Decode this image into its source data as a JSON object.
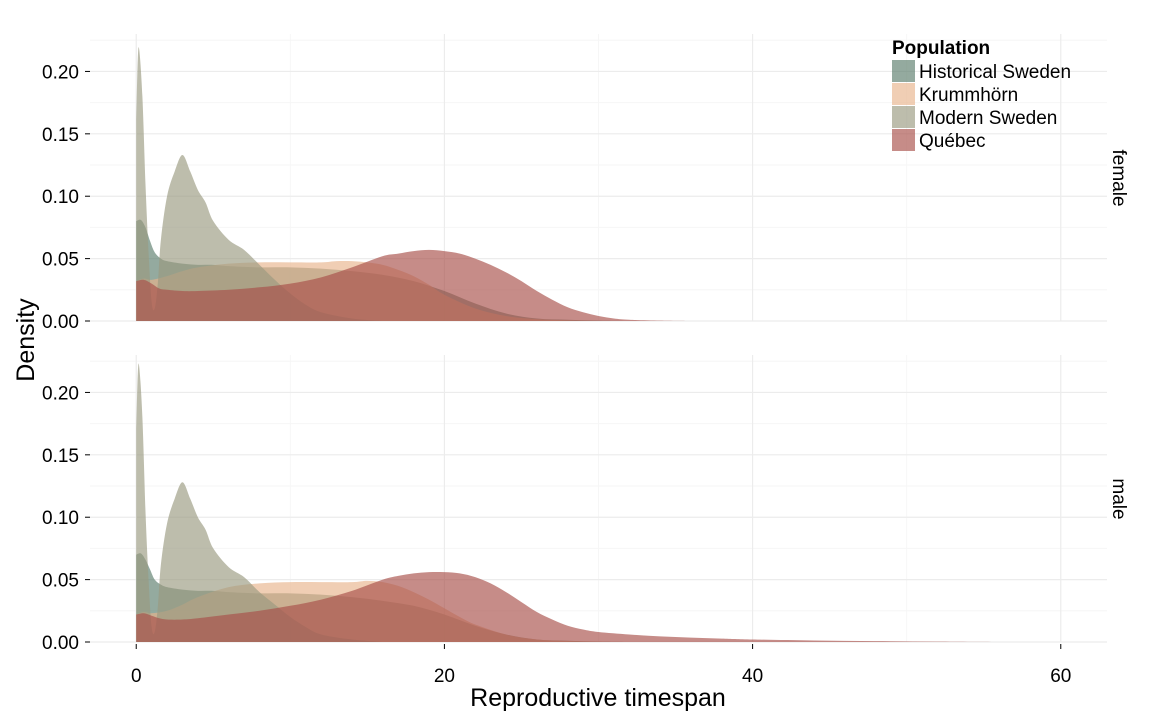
{
  "chart_data": {
    "type": "area",
    "title": "",
    "xlabel": "Reproductive timespan",
    "ylabel": "Density",
    "xlim": [
      -3,
      63
    ],
    "ylim": [
      0,
      0.23
    ],
    "x_ticks": [
      0,
      20,
      40,
      60
    ],
    "x_tick_labels": [
      "0",
      "20",
      "40",
      "60"
    ],
    "y_ticks": [
      0,
      0.05,
      0.1,
      0.15,
      0.2
    ],
    "y_tick_labels": [
      "0.00",
      "0.05",
      "0.10",
      "0.15",
      "0.20"
    ],
    "grid": true,
    "legend": {
      "title": "Population",
      "placement": "top-right",
      "entries": [
        "Historical Sweden",
        "Krummhörn",
        "Modern Sweden",
        "Québec"
      ]
    },
    "series_colors": {
      "Historical Sweden": "#5a7c6c",
      "Krummhörn": "#e8b48c",
      "Modern Sweden": "#9a9a80",
      "Québec": "#a84e48"
    },
    "series_opacity": 0.65,
    "facets": [
      {
        "label": "female",
        "series": [
          {
            "name": "Historical Sweden",
            "x": [
              0,
              0.3,
              0.6,
              0.9,
              1.2,
              1.6,
              2,
              3,
              4,
              5,
              6,
              8,
              10,
              12,
              14,
              16,
              18,
              20,
              22,
              24,
              26,
              28,
              30,
              32
            ],
            "values": [
              0.08,
              0.081,
              0.075,
              0.064,
              0.055,
              0.05,
              0.048,
              0.046,
              0.045,
              0.045,
              0.044,
              0.043,
              0.043,
              0.042,
              0.04,
              0.037,
              0.032,
              0.024,
              0.014,
              0.006,
              0.002,
              0.001,
              0.0003,
              0
            ]
          },
          {
            "name": "Krummhörn",
            "x": [
              0,
              0.5,
              1,
              2,
              3,
              4,
              6,
              8,
              10,
              12,
              13,
              14,
              15,
              16,
              17,
              18,
              19,
              20,
              22,
              24,
              26,
              28,
              30
            ],
            "values": [
              0.032,
              0.034,
              0.033,
              0.036,
              0.04,
              0.043,
              0.046,
              0.047,
              0.047,
              0.047,
              0.048,
              0.048,
              0.047,
              0.045,
              0.041,
              0.036,
              0.029,
              0.021,
              0.01,
              0.004,
              0.0015,
              0.0005,
              0
            ]
          },
          {
            "name": "Modern Sweden",
            "x": [
              0,
              0.1,
              0.2,
              0.4,
              0.6,
              0.8,
              1,
              1.2,
              1.4,
              1.6,
              2,
              2.5,
              3,
              3.5,
              4,
              4.5,
              5,
              6,
              7,
              8,
              9,
              10,
              11,
              12,
              14,
              16
            ],
            "values": [
              0.16,
              0.21,
              0.217,
              0.18,
              0.11,
              0.055,
              0.015,
              0.01,
              0.03,
              0.065,
              0.1,
              0.12,
              0.133,
              0.12,
              0.105,
              0.095,
              0.08,
              0.065,
              0.057,
              0.045,
              0.033,
              0.022,
              0.013,
              0.007,
              0.002,
              0
            ]
          },
          {
            "name": "Québec",
            "x": [
              0,
              0.5,
              1,
              1.5,
              2,
              3,
              4,
              6,
              8,
              10,
              12,
              14,
              16,
              17,
              18,
              19,
              20,
              21,
              22,
              23,
              24,
              25,
              26,
              27,
              28,
              29,
              30,
              31,
              32,
              34,
              36
            ],
            "values": [
              0.032,
              0.033,
              0.03,
              0.026,
              0.025,
              0.024,
              0.024,
              0.025,
              0.027,
              0.03,
              0.035,
              0.043,
              0.052,
              0.054,
              0.056,
              0.057,
              0.056,
              0.054,
              0.05,
              0.045,
              0.039,
              0.032,
              0.024,
              0.017,
              0.011,
              0.007,
              0.004,
              0.002,
              0.001,
              0.0003,
              0
            ]
          }
        ]
      },
      {
        "label": "male",
        "series": [
          {
            "name": "Historical Sweden",
            "x": [
              0,
              0.3,
              0.6,
              0.9,
              1.2,
              1.6,
              2,
              3,
              4,
              5,
              6,
              8,
              10,
              12,
              14,
              16,
              18,
              20,
              22,
              24,
              26,
              28,
              30,
              32
            ],
            "values": [
              0.07,
              0.071,
              0.066,
              0.058,
              0.05,
              0.046,
              0.044,
              0.042,
              0.041,
              0.041,
              0.04,
              0.039,
              0.039,
              0.038,
              0.036,
              0.033,
              0.029,
              0.022,
              0.013,
              0.006,
              0.002,
              0.001,
              0.0003,
              0
            ]
          },
          {
            "name": "Krummhörn",
            "x": [
              0,
              0.5,
              1,
              2,
              3,
              4,
              6,
              8,
              10,
              12,
              14,
              15,
              16,
              17,
              18,
              19,
              20,
              21,
              22,
              24,
              26,
              28,
              30,
              32
            ],
            "values": [
              0.022,
              0.024,
              0.023,
              0.025,
              0.03,
              0.036,
              0.044,
              0.047,
              0.048,
              0.048,
              0.048,
              0.049,
              0.048,
              0.045,
              0.04,
              0.034,
              0.027,
              0.02,
              0.014,
              0.006,
              0.002,
              0.0008,
              0.0002,
              0
            ]
          },
          {
            "name": "Modern Sweden",
            "x": [
              0,
              0.1,
              0.2,
              0.4,
              0.6,
              0.8,
              1,
              1.2,
              1.4,
              1.6,
              2,
              2.5,
              3,
              3.5,
              4,
              4.5,
              5,
              6,
              7,
              8,
              9,
              10,
              11,
              12,
              14,
              16
            ],
            "values": [
              0.17,
              0.215,
              0.22,
              0.18,
              0.105,
              0.05,
              0.012,
              0.008,
              0.028,
              0.062,
              0.095,
              0.115,
              0.128,
              0.115,
              0.1,
              0.09,
              0.075,
              0.06,
              0.052,
              0.04,
              0.03,
              0.02,
              0.012,
              0.006,
              0.002,
              0
            ]
          },
          {
            "name": "Québec",
            "x": [
              0,
              0.5,
              1,
              1.5,
              2,
              3,
              4,
              6,
              8,
              10,
              12,
              14,
              16,
              17,
              18,
              19,
              20,
              21,
              22,
              23,
              24,
              25,
              26,
              27,
              28,
              29,
              30,
              32,
              34,
              36,
              38,
              40,
              44,
              48,
              52,
              56
            ],
            "values": [
              0.022,
              0.023,
              0.021,
              0.019,
              0.018,
              0.018,
              0.019,
              0.022,
              0.025,
              0.029,
              0.034,
              0.041,
              0.05,
              0.053,
              0.055,
              0.056,
              0.056,
              0.055,
              0.052,
              0.047,
              0.04,
              0.032,
              0.024,
              0.018,
              0.013,
              0.01,
              0.008,
              0.006,
              0.0045,
              0.0035,
              0.0027,
              0.002,
              0.0012,
              0.0007,
              0.0003,
              0
            ]
          }
        ]
      }
    ]
  }
}
